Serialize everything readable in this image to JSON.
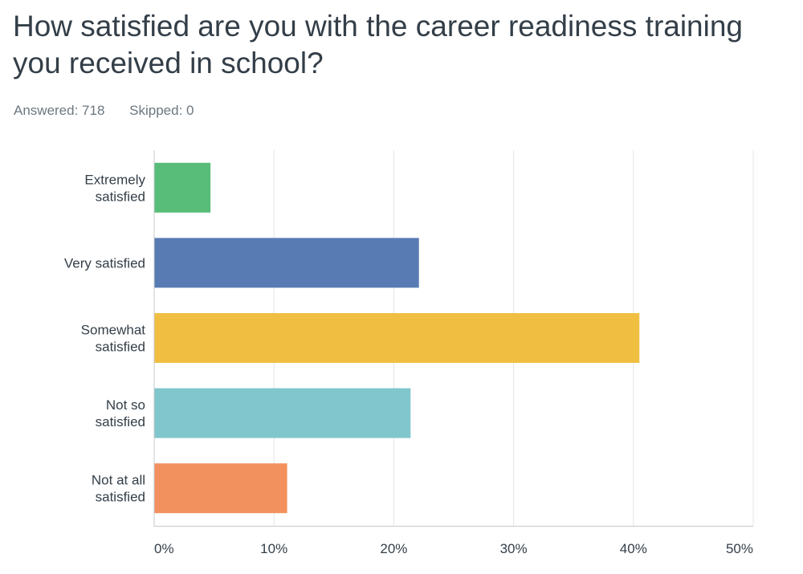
{
  "question": {
    "title": "How satisfied are you with the career readiness training you received in school?",
    "answered_label": "Answered: 718",
    "skipped_label": "Skipped: 0"
  },
  "chart_data": {
    "type": "bar",
    "orientation": "horizontal",
    "categories": [
      [
        "Extremely",
        "satisfied"
      ],
      [
        "Very satisfied"
      ],
      [
        "Somewhat",
        "satisfied"
      ],
      [
        "Not so",
        "satisfied"
      ],
      [
        "Not at all",
        "satisfied"
      ]
    ],
    "values": [
      4.7,
      22.1,
      40.5,
      21.4,
      11.1
    ],
    "colors": [
      "#57bd78",
      "#597bb3",
      "#f0bf42",
      "#80c6cc",
      "#f2915e"
    ],
    "xlim": [
      0,
      50
    ],
    "x_ticks": [
      0,
      10,
      20,
      30,
      40,
      50
    ],
    "x_tick_labels": [
      "0%",
      "10%",
      "20%",
      "30%",
      "40%",
      "50%"
    ],
    "grid": true
  }
}
